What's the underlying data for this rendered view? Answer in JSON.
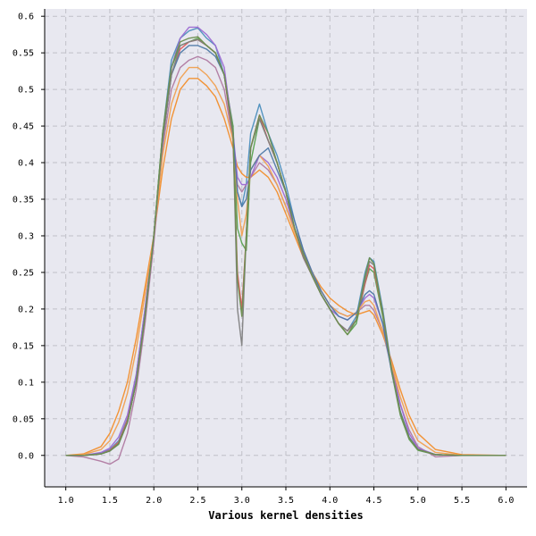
{
  "chart_data": {
    "type": "line",
    "title": "",
    "xlabel": "Various kernel densities",
    "ylabel": "",
    "xlim": [
      0.76,
      6.24
    ],
    "ylim": [
      -0.043,
      0.61
    ],
    "grid": true,
    "background": "#e8e8f0",
    "x_ticks": [
      1.0,
      1.5,
      2.0,
      2.5,
      3.0,
      3.5,
      4.0,
      4.5,
      5.0,
      5.5,
      6.0
    ],
    "x_tick_labels": [
      "1.0",
      "1.5",
      "2.0",
      "2.5",
      "3.0",
      "3.5",
      "4.0",
      "4.5",
      "5.0",
      "5.5",
      "6.0"
    ],
    "y_ticks": [
      0.0,
      0.05,
      0.1,
      0.15,
      0.2,
      0.25,
      0.3,
      0.35,
      0.4,
      0.45,
      0.5,
      0.55,
      0.6
    ],
    "y_tick_labels": [
      "0.0",
      "0.05",
      "0.1",
      "0.15",
      "0.2",
      "0.25",
      "0.3",
      "0.35",
      "0.4",
      "0.45",
      "0.5",
      "0.55",
      "0.6"
    ],
    "x": [
      1.0,
      1.2,
      1.4,
      1.5,
      1.6,
      1.7,
      1.8,
      1.9,
      2.0,
      2.1,
      2.2,
      2.3,
      2.4,
      2.5,
      2.6,
      2.7,
      2.8,
      2.9,
      2.95,
      3.0,
      3.05,
      3.1,
      3.2,
      3.3,
      3.4,
      3.5,
      3.6,
      3.7,
      3.8,
      3.9,
      4.0,
      4.1,
      4.2,
      4.3,
      4.4,
      4.45,
      4.5,
      4.6,
      4.7,
      4.8,
      4.9,
      5.0,
      5.2,
      5.5,
      6.0
    ],
    "series": [
      {
        "color": "#4c8fbd",
        "values": [
          0.0,
          0.0,
          0.003,
          0.008,
          0.02,
          0.05,
          0.11,
          0.2,
          0.3,
          0.44,
          0.54,
          0.57,
          0.58,
          0.584,
          0.57,
          0.56,
          0.52,
          0.44,
          0.36,
          0.34,
          0.37,
          0.44,
          0.48,
          0.44,
          0.41,
          0.37,
          0.32,
          0.28,
          0.25,
          0.22,
          0.2,
          0.18,
          0.17,
          0.19,
          0.25,
          0.27,
          0.265,
          0.2,
          0.12,
          0.06,
          0.025,
          0.008,
          0.001,
          0.0,
          0.0
        ]
      },
      {
        "color": "#f28e2b",
        "values": [
          0.0,
          0.002,
          0.012,
          0.03,
          0.06,
          0.1,
          0.16,
          0.23,
          0.3,
          0.39,
          0.46,
          0.5,
          0.515,
          0.515,
          0.505,
          0.49,
          0.46,
          0.42,
          0.395,
          0.385,
          0.38,
          0.38,
          0.39,
          0.38,
          0.36,
          0.33,
          0.3,
          0.27,
          0.25,
          0.23,
          0.215,
          0.205,
          0.197,
          0.192,
          0.196,
          0.198,
          0.192,
          0.165,
          0.13,
          0.09,
          0.055,
          0.03,
          0.008,
          0.001,
          0.0
        ]
      },
      {
        "color": "#59a14f",
        "values": [
          0.0,
          0.0,
          0.002,
          0.006,
          0.015,
          0.045,
          0.1,
          0.19,
          0.3,
          0.44,
          0.53,
          0.56,
          0.565,
          0.57,
          0.56,
          0.55,
          0.52,
          0.45,
          0.31,
          0.29,
          0.28,
          0.4,
          0.46,
          0.43,
          0.4,
          0.36,
          0.31,
          0.27,
          0.245,
          0.22,
          0.2,
          0.18,
          0.165,
          0.18,
          0.235,
          0.255,
          0.25,
          0.19,
          0.115,
          0.055,
          0.022,
          0.007,
          0.001,
          0.0,
          0.0
        ]
      },
      {
        "color": "#e15759",
        "values": [
          0.0,
          0.0,
          0.002,
          0.007,
          0.018,
          0.048,
          0.1,
          0.19,
          0.3,
          0.43,
          0.52,
          0.555,
          0.565,
          0.568,
          0.56,
          0.55,
          0.52,
          0.43,
          0.25,
          0.2,
          0.3,
          0.42,
          0.465,
          0.43,
          0.4,
          0.36,
          0.31,
          0.27,
          0.245,
          0.22,
          0.2,
          0.18,
          0.17,
          0.185,
          0.235,
          0.26,
          0.255,
          0.195,
          0.118,
          0.058,
          0.024,
          0.008,
          0.001,
          0.0,
          0.0
        ]
      },
      {
        "color": "#b07aa1",
        "values": [
          0.0,
          -0.002,
          -0.008,
          -0.012,
          -0.005,
          0.03,
          0.09,
          0.18,
          0.29,
          0.42,
          0.5,
          0.53,
          0.54,
          0.545,
          0.54,
          0.53,
          0.5,
          0.43,
          0.37,
          0.36,
          0.37,
          0.38,
          0.4,
          0.39,
          0.37,
          0.34,
          0.31,
          0.28,
          0.25,
          0.225,
          0.205,
          0.195,
          0.19,
          0.195,
          0.205,
          0.205,
          0.198,
          0.17,
          0.12,
          0.07,
          0.035,
          0.012,
          -0.002,
          0.0,
          0.0
        ]
      },
      {
        "color": "#9c6ad2",
        "values": [
          0.0,
          0.0,
          0.004,
          0.01,
          0.025,
          0.055,
          0.11,
          0.2,
          0.3,
          0.43,
          0.53,
          0.57,
          0.585,
          0.585,
          0.575,
          0.56,
          0.53,
          0.44,
          0.38,
          0.37,
          0.37,
          0.38,
          0.41,
          0.4,
          0.38,
          0.35,
          0.31,
          0.275,
          0.245,
          0.22,
          0.2,
          0.19,
          0.185,
          0.195,
          0.215,
          0.22,
          0.215,
          0.18,
          0.125,
          0.07,
          0.03,
          0.01,
          0.001,
          0.0,
          0.0
        ]
      },
      {
        "color": "#f0a050",
        "values": [
          0.0,
          0.001,
          0.008,
          0.02,
          0.045,
          0.085,
          0.145,
          0.22,
          0.3,
          0.41,
          0.48,
          0.515,
          0.53,
          0.53,
          0.52,
          0.505,
          0.48,
          0.43,
          0.35,
          0.3,
          0.33,
          0.39,
          0.41,
          0.395,
          0.37,
          0.34,
          0.305,
          0.275,
          0.25,
          0.225,
          0.205,
          0.195,
          0.19,
          0.195,
          0.21,
          0.212,
          0.205,
          0.17,
          0.125,
          0.08,
          0.045,
          0.02,
          0.004,
          0.0,
          0.0
        ]
      },
      {
        "color": "#4e79a7",
        "values": [
          0.0,
          0.0,
          0.002,
          0.006,
          0.016,
          0.045,
          0.1,
          0.19,
          0.3,
          0.43,
          0.52,
          0.55,
          0.56,
          0.56,
          0.555,
          0.545,
          0.52,
          0.44,
          0.36,
          0.34,
          0.35,
          0.39,
          0.41,
          0.42,
          0.39,
          0.36,
          0.32,
          0.28,
          0.25,
          0.225,
          0.205,
          0.19,
          0.185,
          0.195,
          0.22,
          0.225,
          0.22,
          0.18,
          0.115,
          0.06,
          0.025,
          0.008,
          0.001,
          0.0,
          0.0
        ]
      },
      {
        "color": "#7f7f7f",
        "values": [
          0.0,
          0.0,
          0.002,
          0.006,
          0.016,
          0.045,
          0.1,
          0.19,
          0.3,
          0.43,
          0.52,
          0.56,
          0.565,
          0.568,
          0.56,
          0.55,
          0.52,
          0.44,
          0.2,
          0.15,
          0.3,
          0.42,
          0.46,
          0.43,
          0.4,
          0.36,
          0.31,
          0.27,
          0.245,
          0.22,
          0.2,
          0.18,
          0.17,
          0.185,
          0.24,
          0.265,
          0.26,
          0.195,
          0.118,
          0.058,
          0.024,
          0.008,
          0.001,
          0.0,
          0.0
        ]
      },
      {
        "color": "#6b8e4e",
        "values": [
          0.0,
          0.0,
          0.002,
          0.006,
          0.016,
          0.045,
          0.1,
          0.19,
          0.3,
          0.44,
          0.53,
          0.565,
          0.57,
          0.572,
          0.56,
          0.55,
          0.52,
          0.44,
          0.24,
          0.19,
          0.3,
          0.42,
          0.465,
          0.44,
          0.4,
          0.36,
          0.31,
          0.275,
          0.245,
          0.22,
          0.2,
          0.18,
          0.165,
          0.185,
          0.245,
          0.27,
          0.262,
          0.195,
          0.118,
          0.058,
          0.024,
          0.008,
          0.001,
          0.0,
          0.0
        ]
      }
    ]
  }
}
